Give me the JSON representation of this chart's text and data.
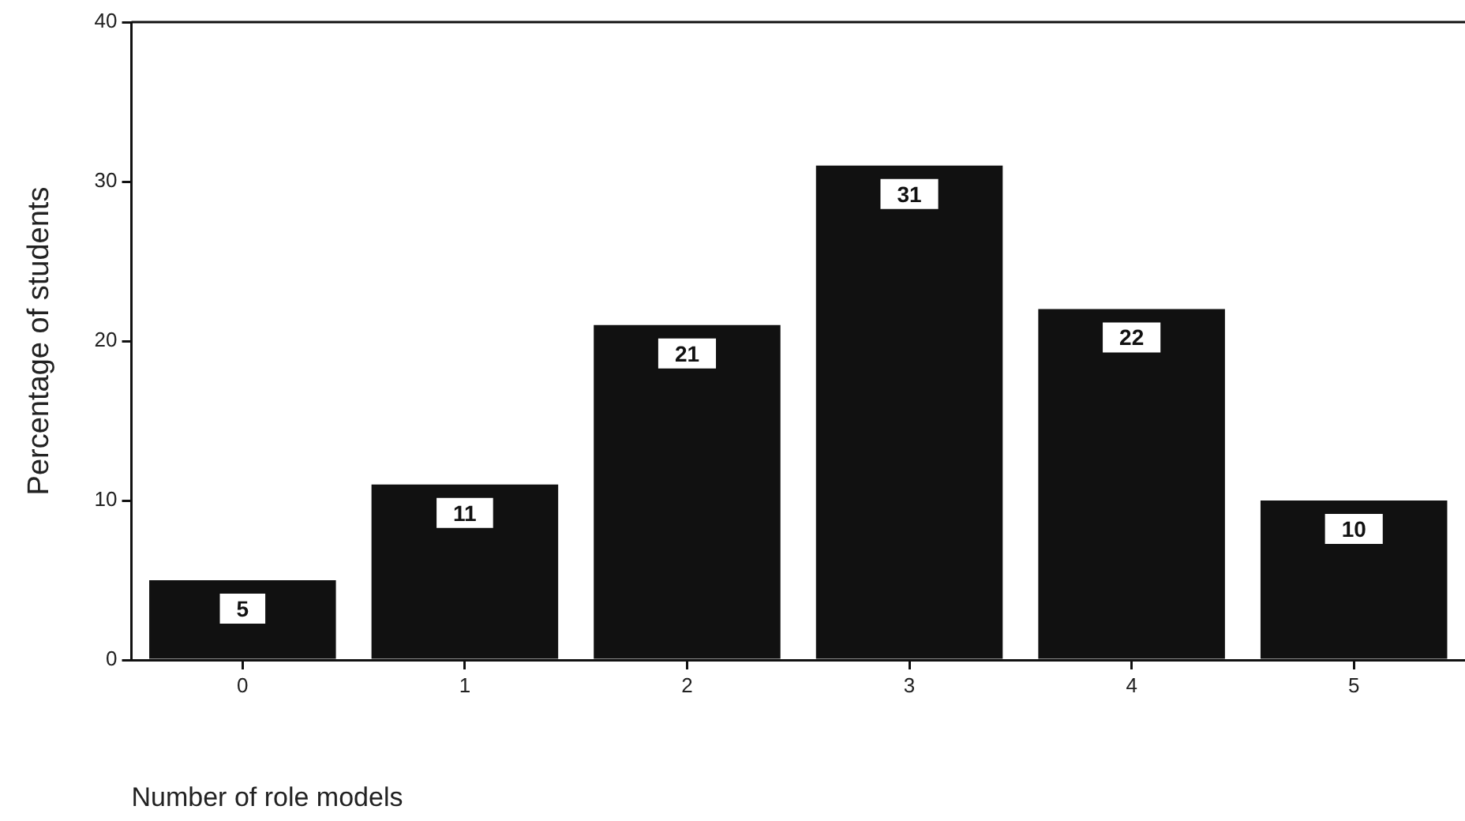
{
  "chart_data": {
    "type": "bar",
    "xlabel": "Number of role models",
    "ylabel": "Percentage of students",
    "categories": [
      "0",
      "1",
      "2",
      "3",
      "4",
      "5"
    ],
    "values": [
      5,
      11,
      21,
      31,
      22,
      10
    ],
    "color": "#111111",
    "ylim": [
      0,
      40
    ],
    "yticks": [
      0,
      10,
      20,
      30,
      40
    ],
    "grid": false,
    "legend": false,
    "data_labels": true
  }
}
